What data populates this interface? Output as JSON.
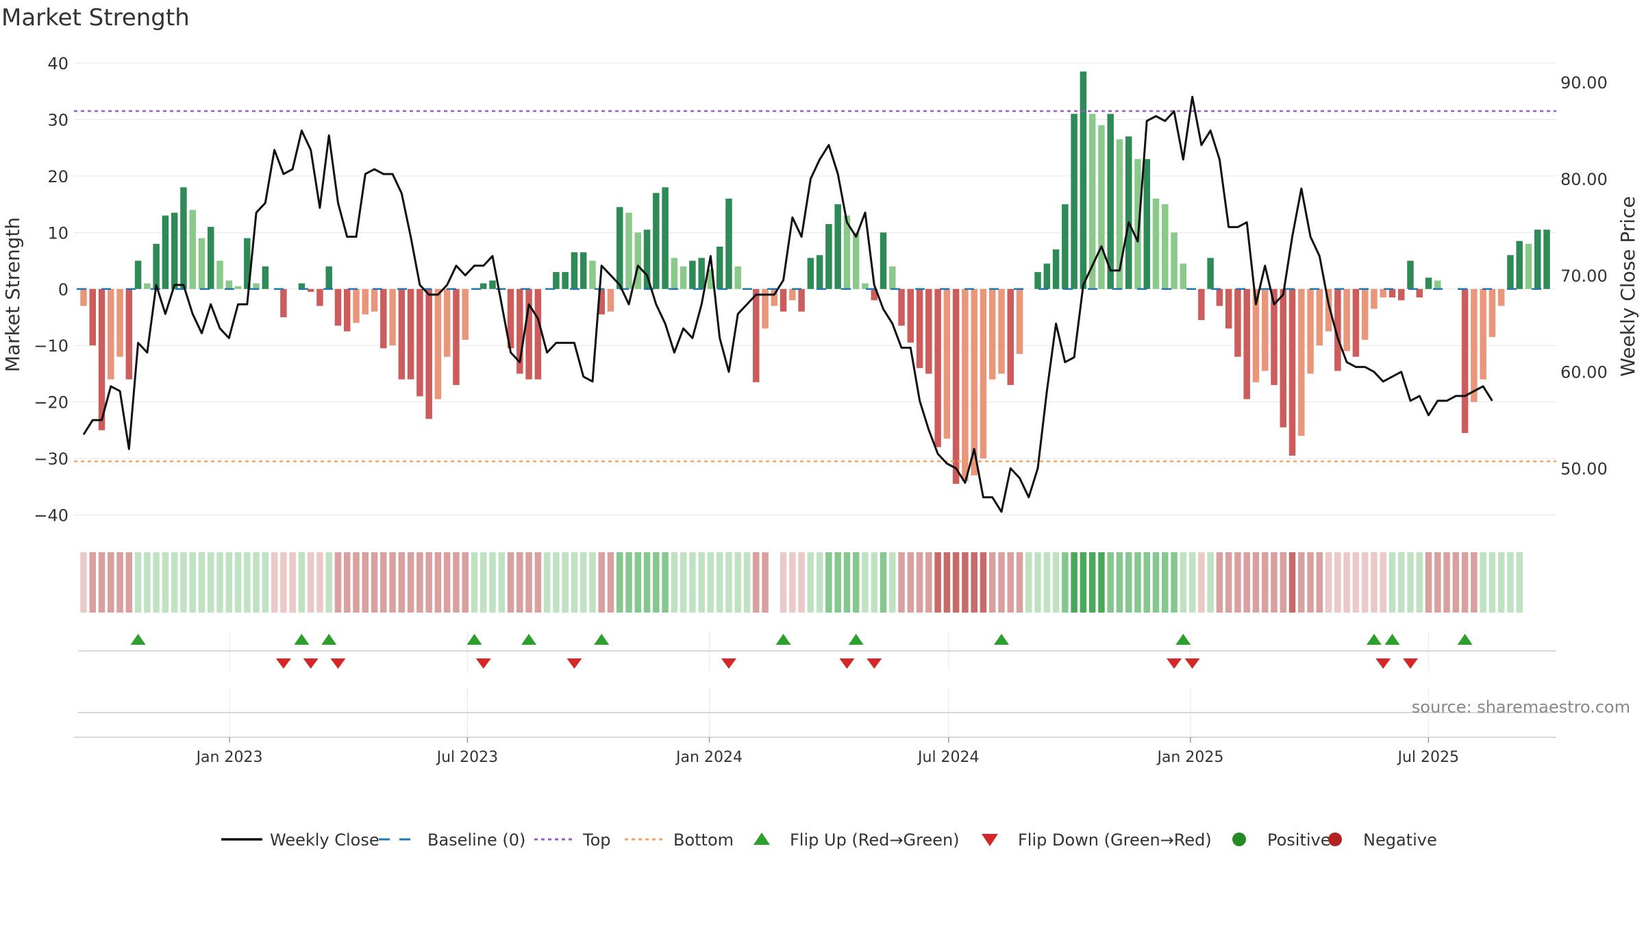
{
  "chart_data": {
    "type": "bar",
    "title": "Market Strength",
    "source": "source: sharemaestro.com",
    "ylabel": "Market Strength",
    "y2label": "Weekly Close Price",
    "ylim": [
      -42,
      40
    ],
    "y2lim": [
      44,
      92
    ],
    "yticks": [
      40,
      30,
      20,
      10,
      0,
      -10,
      -20,
      -30,
      -40
    ],
    "y2ticks": [
      "90.00",
      "80.00",
      "70.00",
      "60.00",
      "50.00"
    ],
    "y2tick_values": [
      90,
      80,
      70,
      60,
      50
    ],
    "top_line": 31.5,
    "bottom_line": -30.5,
    "x_start": "2022-09-12",
    "x_end": "2025-09-29",
    "xticks": [
      {
        "label": "Jan 2023",
        "date": "2023-01-01"
      },
      {
        "label": "Jul 2023",
        "date": "2023-07-01"
      },
      {
        "label": "Jan 2024",
        "date": "2024-01-01"
      },
      {
        "label": "Jul 2024",
        "date": "2024-07-01"
      },
      {
        "label": "Jan 2025",
        "date": "2025-01-01"
      },
      {
        "label": "Jul 2025",
        "date": "2025-07-01"
      }
    ],
    "strength": [
      -3,
      -10,
      -25,
      -16,
      -12,
      -16,
      5,
      1,
      8,
      13,
      13.5,
      18,
      14,
      9,
      11,
      5,
      1.5,
      0.5,
      9,
      1,
      4,
      0,
      -5,
      0,
      1,
      -0.5,
      -3,
      4,
      -6.5,
      -7.5,
      -6,
      -4.5,
      -4,
      -10.5,
      -10,
      -16,
      -16,
      -19,
      -23,
      -19.5,
      -12,
      -17,
      -9,
      0,
      1,
      1.5,
      0,
      -10.5,
      -15,
      -16,
      -16,
      0,
      3,
      3,
      6.5,
      6.5,
      5,
      -4.5,
      -4,
      14.5,
      13.5,
      10,
      10.5,
      17,
      18,
      5.5,
      4,
      5,
      5.5,
      3.5,
      7.5,
      16,
      4,
      0,
      -16.5,
      -7,
      -3,
      -4,
      -2,
      -4,
      5.5,
      6,
      11.5,
      15,
      13,
      10,
      1,
      -2,
      10,
      4,
      -6.5,
      -9.5,
      -14,
      -15,
      -28,
      -26.5,
      -34.5,
      -34,
      -33,
      -30,
      -16,
      -15,
      -17,
      -11.5,
      0,
      3,
      4.5,
      7,
      15,
      31,
      38.5,
      31,
      29,
      31,
      26.5,
      27,
      23,
      23,
      16,
      15,
      10,
      4.5,
      0,
      -5.5,
      5.5,
      -3,
      -7,
      -12,
      -19.5,
      -16.5,
      -14.5,
      -17,
      -24.5,
      -29.5,
      -26,
      -15,
      -10,
      -7.5,
      -14.5,
      -11,
      -12,
      -9,
      -3.5,
      -1.5,
      -1.5,
      -2,
      5,
      -1.5,
      2,
      1.5,
      0,
      0,
      -25.5,
      -20,
      -16,
      -8.5,
      -3,
      6,
      8.5,
      8,
      10.5,
      10.5
    ],
    "weekly_close": [
      53.5,
      55,
      55,
      58.5,
      58,
      52,
      63,
      62,
      69,
      66,
      69,
      69,
      66,
      64,
      67,
      64.5,
      63.5,
      67,
      67,
      76.5,
      77.5,
      83,
      80.5,
      81,
      85,
      83,
      77,
      84.5,
      77.5,
      74,
      74,
      80.5,
      81,
      80.5,
      80.5,
      78.5,
      74,
      69,
      68,
      68,
      69,
      71,
      70,
      71,
      71,
      72,
      67,
      62,
      61,
      67,
      65.5,
      62,
      63,
      63,
      63,
      59.5,
      59,
      71,
      70,
      69,
      67,
      71,
      70,
      67,
      65,
      62,
      64.5,
      63.5,
      67,
      72,
      63.5,
      60,
      66,
      67,
      68,
      68,
      68,
      69.5,
      76,
      74,
      80,
      82,
      83.5,
      80.5,
      75.5,
      74,
      76.5,
      69,
      66.5,
      65,
      62.5,
      62.5,
      57,
      54,
      51.5,
      50.5,
      50,
      48.5,
      52,
      47,
      47,
      45.5,
      50,
      49,
      47,
      50,
      58,
      65,
      61,
      61.5,
      69,
      71,
      73,
      70.5,
      70.5,
      75.5,
      73.5,
      86,
      86.5,
      86,
      87,
      82,
      88.5,
      83.5,
      85,
      82,
      75,
      75,
      75.5,
      67,
      71,
      67,
      68,
      74,
      79,
      74,
      72,
      67,
      63.5,
      61,
      60.5,
      60.5,
      60,
      59,
      59.5,
      60,
      57,
      57.5,
      55.5,
      57,
      57,
      57.5,
      57.5,
      58,
      58.5,
      57
    ],
    "regime": [
      -1,
      -2,
      -2,
      -2,
      -2,
      -2,
      1,
      1,
      1,
      1,
      1,
      1,
      1,
      1,
      1,
      1,
      1,
      1,
      1,
      1,
      1,
      -1,
      -1,
      -1,
      1,
      -1,
      -1,
      1,
      -2,
      -2,
      -2,
      -2,
      -2,
      -2,
      -2,
      -2,
      -2,
      -2,
      -2,
      -2,
      -2,
      -2,
      -2,
      1,
      1,
      1,
      1,
      -2,
      -2,
      -2,
      -2,
      1,
      1,
      1,
      1,
      1,
      1,
      -2,
      -2,
      2,
      2,
      2,
      2,
      2,
      2,
      1,
      1,
      1,
      1,
      1,
      1,
      1,
      1,
      1,
      -2,
      -2,
      0,
      -1,
      -1,
      -1,
      1,
      1,
      2,
      2,
      2,
      2,
      1,
      1,
      2,
      1,
      -2,
      -2,
      -2,
      -2,
      -3,
      -3,
      -3,
      -3,
      -3,
      -3,
      -2,
      -2,
      -2,
      -2,
      1,
      1,
      1,
      1,
      2,
      3,
      3,
      3,
      3,
      2,
      2,
      2,
      2,
      2,
      2,
      2,
      2,
      1,
      1,
      -1,
      1,
      -2,
      -2,
      -2,
      -2,
      -2,
      -2,
      -2,
      -2,
      -3,
      -2,
      -2,
      -2,
      -1,
      -1,
      -1,
      -1,
      -1,
      -1,
      -1,
      1,
      1,
      1,
      1,
      -2,
      -2,
      -2,
      -2,
      -2,
      -2,
      1,
      1,
      1,
      1,
      1
    ],
    "flip_up": [
      6,
      24,
      27,
      43,
      49,
      57,
      77,
      85,
      101,
      121,
      142,
      144,
      152
    ],
    "flip_down": [
      22,
      25,
      28,
      44,
      54,
      71,
      84,
      87,
      120,
      122,
      143,
      146
    ],
    "colors": {
      "green_strong": "#2e8b57",
      "green_light": "#8bc98b",
      "red_strong": "#cd5c5c",
      "red_light": "#e9967a",
      "baseline": "#1f77b4",
      "top": "#9b59d0",
      "bottom": "#f4a460",
      "close": "#111111",
      "flip_up": "#2ca02c",
      "flip_down": "#d62728",
      "positive": "#228b22",
      "negative": "#b22222"
    },
    "legend": [
      {
        "label": "Weekly Close",
        "kind": "line"
      },
      {
        "label": "Baseline (0)",
        "kind": "dash"
      },
      {
        "label": "Top",
        "kind": "dot-purple"
      },
      {
        "label": "Bottom",
        "kind": "dot-orange"
      },
      {
        "label": "Flip Up (Red→Green)",
        "kind": "tri-up"
      },
      {
        "label": "Flip Down (Green→Red)",
        "kind": "tri-down"
      },
      {
        "label": "Positive",
        "kind": "circle-green"
      },
      {
        "label": "Negative",
        "kind": "circle-red"
      }
    ]
  }
}
